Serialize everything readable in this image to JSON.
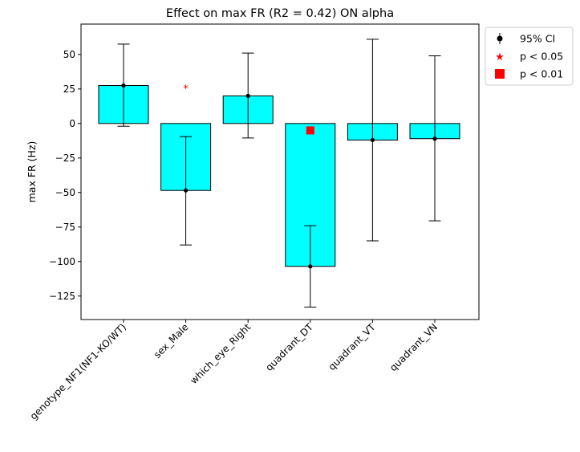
{
  "chart_data": {
    "type": "bar",
    "title": "Effect on max FR (R2 = 0.42) ON alpha",
    "xlabel": "",
    "ylabel": "max FR (Hz)",
    "ylim": [
      -142,
      72
    ],
    "yticks": [
      50,
      25,
      0,
      -25,
      -50,
      -75,
      -100,
      -125
    ],
    "categories": [
      "genotype_NF1(NF1-KO/WT)",
      "sex_Male",
      "which_eye_Right",
      "quadrant_DT",
      "quadrant_VT",
      "quadrant_VN"
    ],
    "values": [
      27.5,
      -48.5,
      20,
      -103.5,
      -12,
      -11
    ],
    "ci_lower": [
      -2,
      -88,
      -10.5,
      -133,
      -85,
      -70.5
    ],
    "ci_upper": [
      57.5,
      -9.5,
      51,
      -74,
      61,
      49
    ],
    "significance": [
      "",
      "p < 0.05",
      "",
      "p < 0.01",
      "",
      ""
    ],
    "marker_y": [
      null,
      26,
      null,
      -5,
      null,
      null
    ],
    "bar_color": "#00ffff",
    "bar_edge_color": "#000000",
    "star_color": "#ff0000",
    "square_color": "#ff0000",
    "legend": {
      "placement": "outside top-right",
      "entries": [
        {
          "label": "95% CI",
          "marker": "errorbar-dot"
        },
        {
          "label": "p < 0.05",
          "marker": "star"
        },
        {
          "label": "p < 0.01",
          "marker": "square"
        }
      ]
    },
    "grid": false
  }
}
